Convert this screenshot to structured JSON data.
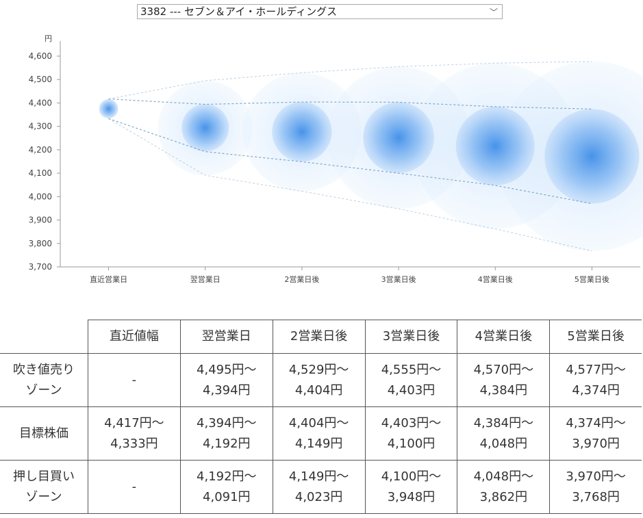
{
  "selector": {
    "value": "3382 --- セブン＆アイ・ホールディングス"
  },
  "colors": {
    "bubble": "#3f8ee8",
    "bubble_light": "#d6e9fc",
    "line": "#7ea8c9"
  },
  "chart_data": {
    "type": "scatter",
    "ylabel": "円",
    "ylim": [
      3700,
      4600
    ],
    "yticks": [
      "4,600",
      "4,500",
      "4,400",
      "4,300",
      "4,200",
      "4,100",
      "4,000",
      "3,900",
      "3,800",
      "3,700"
    ],
    "categories": [
      "直近営業日",
      "翌営業日",
      "2営業日後",
      "3営業日後",
      "4営業日後",
      "5営業日後"
    ],
    "series": [
      {
        "values": [
          4375,
          4294,
          4277,
          4252,
          4216,
          4172
        ]
      }
    ],
    "target_range": {
      "upper": [
        4417,
        4394,
        4404,
        4403,
        4384,
        4374
      ],
      "lower": [
        4333,
        4192,
        4149,
        4100,
        4048,
        3970
      ]
    },
    "outer_range": {
      "upper": [
        4417,
        4495,
        4529,
        4555,
        4570,
        4577
      ],
      "lower": [
        4333,
        4091,
        4023,
        3948,
        3862,
        3768
      ]
    }
  },
  "table": {
    "headers": [
      "",
      "直近値幅",
      "翌営業日",
      "2営業日後",
      "3営業日後",
      "4営業日後",
      "5営業日後"
    ],
    "rows": [
      {
        "label": "吹き値売りゾーン",
        "cells": [
          "-",
          "4,495円～ 4,394円",
          "4,529円～ 4,404円",
          "4,555円～ 4,403円",
          "4,570円～ 4,384円",
          "4,577円～ 4,374円"
        ]
      },
      {
        "label": "目標株価",
        "cells": [
          "4,417円～ 4,333円",
          "4,394円～ 4,192円",
          "4,404円～ 4,149円",
          "4,403円～ 4,100円",
          "4,384円～ 4,048円",
          "4,374円～ 3,970円"
        ]
      },
      {
        "label": "押し目買いゾーン",
        "cells": [
          "-",
          "4,192円～ 4,091円",
          "4,149円～ 4,023円",
          "4,100円～ 3,948円",
          "4,048円～ 3,862円",
          "3,970円～ 3,768円"
        ]
      }
    ]
  }
}
